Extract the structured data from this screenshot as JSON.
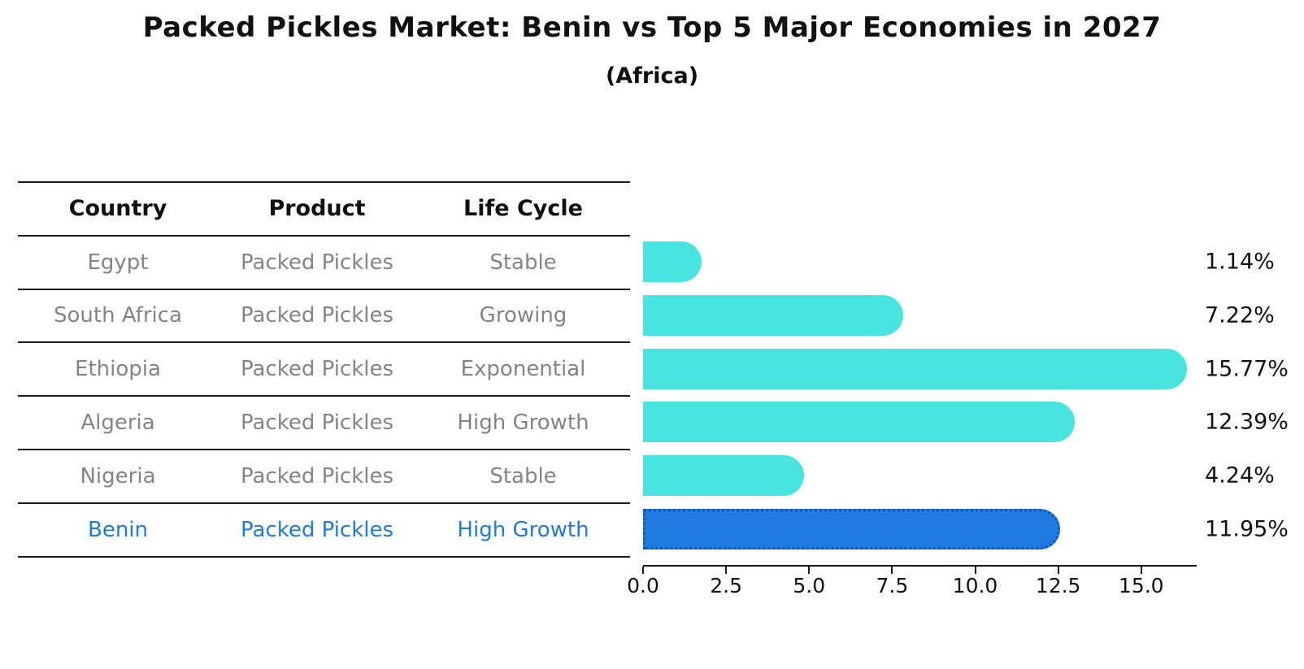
{
  "title": "Packed Pickles Market: Benin vs Top 5 Major Economies in 2027",
  "subtitle": "(Africa)",
  "table": {
    "headers": [
      "Country",
      "Product",
      "Life Cycle"
    ],
    "rows": [
      [
        "Egypt",
        "Packed Pickles",
        "Stable"
      ],
      [
        "South Africa",
        "Packed Pickles",
        "Growing"
      ],
      [
        "Ethiopia",
        "Packed Pickles",
        "Exponential"
      ],
      [
        "Algeria",
        "Packed Pickles",
        "High Growth"
      ],
      [
        "Nigeria",
        "Packed Pickles",
        "Stable"
      ],
      [
        "Benin",
        "Packed Pickles",
        "High Growth"
      ]
    ],
    "highlight_row_index": 5
  },
  "chart_data": {
    "type": "bar",
    "orientation": "horizontal",
    "categories": [
      "Egypt",
      "South Africa",
      "Ethiopia",
      "Algeria",
      "Nigeria",
      "Benin"
    ],
    "values": [
      1.14,
      7.22,
      15.77,
      12.39,
      4.24,
      11.95
    ],
    "value_labels": [
      "1.14%",
      "7.22%",
      "15.77%",
      "12.39%",
      "4.24%",
      "11.95%"
    ],
    "highlight_index": 5,
    "x_tick_labels": [
      "0.0",
      "2.5",
      "5.0",
      "7.5",
      "10.0",
      "12.5",
      "15.0"
    ],
    "x_tick_values": [
      0,
      2.5,
      5,
      7.5,
      10,
      12.5,
      15
    ],
    "xlim": [
      0,
      16.6
    ],
    "grid": false,
    "legend": false,
    "colors": {
      "bar_fill": "#48e5e0",
      "highlight_bar_fill": "#207ae0",
      "highlight_bar_border": "#0a58c8",
      "table_text": "#848484",
      "highlight_text": "#1f7ae0",
      "header_text": "#111111",
      "axis_text": "#111111"
    }
  }
}
